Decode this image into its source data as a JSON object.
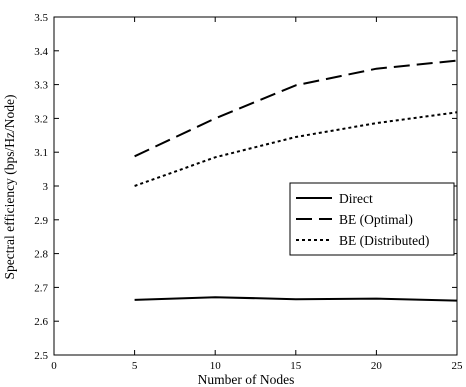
{
  "chart_data": {
    "type": "line",
    "xlabel": "Number of Nodes",
    "ylabel": "Spectral efficiency (bps/Hz/Node)",
    "xlim": [
      0,
      25
    ],
    "ylim": [
      2.5,
      3.5
    ],
    "xticks": [
      0,
      5,
      10,
      15,
      20,
      25
    ],
    "yticks": [
      2.5,
      2.6,
      2.7,
      2.8,
      2.9,
      3,
      3.1,
      3.2,
      3.3,
      3.4,
      3.5
    ],
    "xtick_labels": [
      "0",
      "5",
      "10",
      "15",
      "20",
      "25"
    ],
    "ytick_labels": [
      "2.5",
      "2.6",
      "2.7",
      "2.8",
      "2.9",
      "3",
      "3.1",
      "3.2",
      "3.3",
      "3.4",
      "3.5"
    ],
    "grid": false,
    "legend_position": "center-right",
    "x": [
      5,
      10,
      15,
      20,
      25
    ],
    "series": [
      {
        "name": "Direct",
        "style": "solid",
        "values": [
          2.663,
          2.671,
          2.665,
          2.667,
          2.661
        ]
      },
      {
        "name": "BE (Optimal)",
        "style": "dashed",
        "values": [
          3.088,
          3.2,
          3.298,
          3.347,
          3.371
        ]
      },
      {
        "name": "BE (Distributed)",
        "style": "dotted",
        "values": [
          3.0,
          3.085,
          3.145,
          3.186,
          3.218
        ]
      }
    ],
    "color": "#000000"
  }
}
